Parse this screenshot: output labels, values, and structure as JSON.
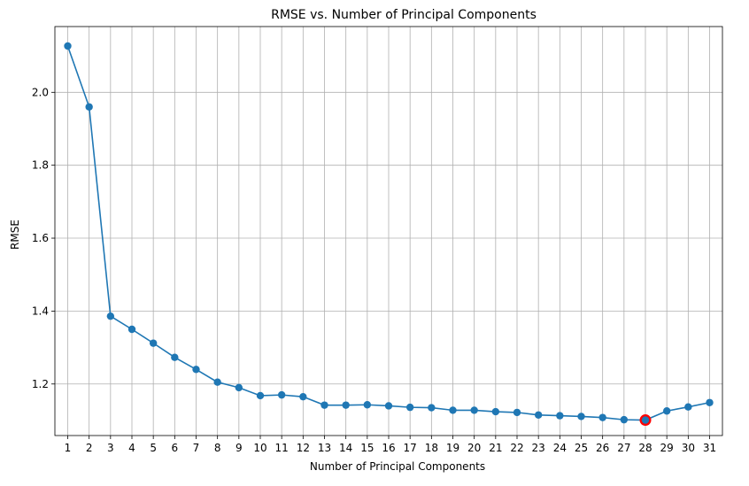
{
  "chart_data": {
    "type": "line",
    "title": "RMSE vs. Number of Principal Components",
    "xlabel": "Number of Principal Components",
    "ylabel": "RMSE",
    "x": [
      1,
      2,
      3,
      4,
      5,
      6,
      7,
      8,
      9,
      10,
      11,
      12,
      13,
      14,
      15,
      16,
      17,
      18,
      19,
      20,
      21,
      22,
      23,
      24,
      25,
      26,
      27,
      28,
      29,
      30,
      31
    ],
    "series": [
      {
        "values": [
          2.127,
          1.96,
          1.386,
          1.35,
          1.312,
          1.273,
          1.24,
          1.205,
          1.19,
          1.168,
          1.17,
          1.165,
          1.142,
          1.142,
          1.143,
          1.14,
          1.136,
          1.135,
          1.128,
          1.128,
          1.124,
          1.122,
          1.115,
          1.113,
          1.111,
          1.108,
          1.102,
          1.101,
          1.126,
          1.137,
          1.149
        ],
        "color": "#1f77b4",
        "marker": "circle"
      }
    ],
    "highlight": {
      "x": 28,
      "y": 1.101,
      "color": "#ff0000"
    },
    "xlim": [
      0.4,
      31.6
    ],
    "ylim": [
      1.0586,
      2.1804
    ],
    "yticks": [
      1.2,
      1.4,
      1.6,
      1.8,
      2.0
    ],
    "ytick_labels": [
      "1.2",
      "1.4",
      "1.6",
      "1.8",
      "2.0"
    ],
    "xticks": [
      1,
      2,
      3,
      4,
      5,
      6,
      7,
      8,
      9,
      10,
      11,
      12,
      13,
      14,
      15,
      16,
      17,
      18,
      19,
      20,
      21,
      22,
      23,
      24,
      25,
      26,
      27,
      28,
      29,
      30,
      31
    ],
    "grid": true
  }
}
